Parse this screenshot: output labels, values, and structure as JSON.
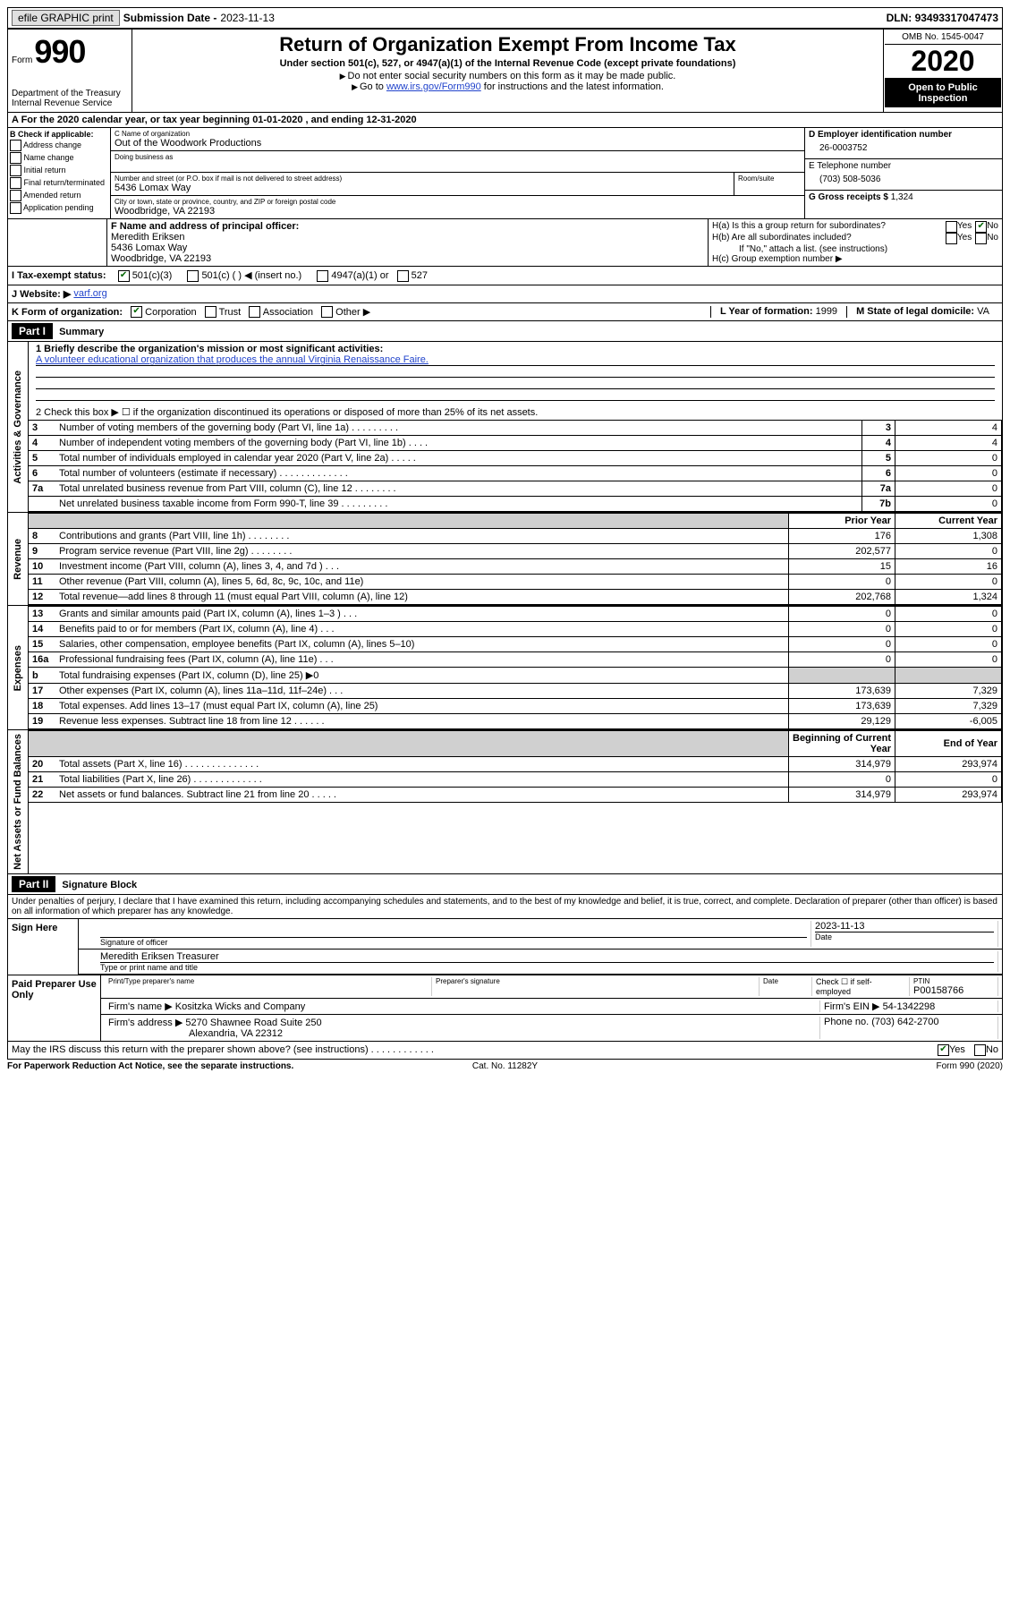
{
  "top": {
    "efile_btn": "efile GRAPHIC print",
    "submission_label": "Submission Date - ",
    "submission_date": "2023-11-13",
    "dln_label": "DLN: ",
    "dln": "93493317047473"
  },
  "header": {
    "form_label": "Form",
    "form_number": "990",
    "dept": "Department of the Treasury\nInternal Revenue Service",
    "title": "Return of Organization Exempt From Income Tax",
    "subtitle": "Under section 501(c), 527, or 4947(a)(1) of the Internal Revenue Code (except private foundations)",
    "instruct1": "Do not enter social security numbers on this form as it may be made public.",
    "instruct2": "Go to ",
    "instruct2_link": "www.irs.gov/Form990",
    "instruct2_suffix": " for instructions and the latest information.",
    "omb": "OMB No. 1545-0047",
    "year": "2020",
    "open_public": "Open to Public Inspection"
  },
  "row_a": "A   For the 2020 calendar year, or tax year beginning 01-01-2020   , and ending 12-31-2020",
  "section_b": {
    "header": "B Check if applicable:",
    "items": [
      "Address change",
      "Name change",
      "Initial return",
      "Final return/terminated",
      "Amended return",
      "Application pending"
    ]
  },
  "section_c": {
    "name_label": "C Name of organization",
    "name": "Out of the Woodwork Productions",
    "dba_label": "Doing business as",
    "address_label": "Number and street (or P.O. box if mail is not delivered to street address)",
    "room_label": "Room/suite",
    "address": "5436 Lomax Way",
    "city_label": "City or town, state or province, country, and ZIP or foreign postal code",
    "city": "Woodbridge, VA  22193"
  },
  "section_de": {
    "d_label": "D Employer identification number",
    "ein": "26-0003752",
    "e_label": "E Telephone number",
    "phone": "(703) 508-5036",
    "g_label": "G Gross receipts $ ",
    "g_value": "1,324"
  },
  "section_f": {
    "label": "F Name and address of principal officer:",
    "name": "Meredith Eriksen",
    "addr1": "5436 Lomax Way",
    "addr2": "Woodbridge, VA  22193"
  },
  "section_h": {
    "ha": "H(a)  Is this a group return for subordinates?",
    "hb": "H(b)  Are all subordinates included?",
    "hb_note": "If \"No,\" attach a list. (see instructions)",
    "hc": "H(c)  Group exemption number ▶"
  },
  "section_i": {
    "label": "I   Tax-exempt status:",
    "opt1": "501(c)(3)",
    "opt2": "501(c) (  ) ◀ (insert no.)",
    "opt3": "4947(a)(1) or",
    "opt4": "527"
  },
  "section_j": {
    "label": "J   Website: ▶",
    "value": "varf.org"
  },
  "section_k": {
    "label": "K Form of organization:",
    "o1": "Corporation",
    "o2": "Trust",
    "o3": "Association",
    "o4": "Other ▶"
  },
  "section_l": {
    "label": "L Year of formation: ",
    "value": "1999"
  },
  "section_m": {
    "label": "M State of legal domicile: ",
    "value": "VA"
  },
  "part1_header": {
    "part": "Part I",
    "title": "Summary"
  },
  "summary": {
    "q1_label": "1  Briefly describe the organization's mission or most significant activities:",
    "q1_value": "A volunteer educational organization that produces the annual Virginia Renaissance Faire.",
    "q2": "2   Check this box ▶ ☐  if the organization discontinued its operations or disposed of more than 25% of its net assets.",
    "rows_simple": [
      {
        "n": "3",
        "txt": "Number of voting members of the governing body (Part VI, line 1a)  .   .   .   .   .   .   .   .   .",
        "box": "3",
        "val": "4"
      },
      {
        "n": "4",
        "txt": "Number of independent voting members of the governing body (Part VI, line 1b)   .   .   .   .",
        "box": "4",
        "val": "4"
      },
      {
        "n": "5",
        "txt": "Total number of individuals employed in calendar year 2020 (Part V, line 2a)   .   .   .   .   .",
        "box": "5",
        "val": "0"
      },
      {
        "n": "6",
        "txt": "Total number of volunteers (estimate if necessary)   .   .   .   .   .   .   .   .   .   .   .   .   .",
        "box": "6",
        "val": "0"
      },
      {
        "n": "7a",
        "txt": "Total unrelated business revenue from Part VIII, column (C), line 12   .   .   .   .   .   .   .   .",
        "box": "7a",
        "val": "0"
      },
      {
        "n": "",
        "txt": "Net unrelated business taxable income from Form 990-T, line 39   .   .   .   .   .   .   .   .   .",
        "box": "7b",
        "val": "0"
      }
    ]
  },
  "revenue": {
    "header_prior": "Prior Year",
    "header_current": "Current Year",
    "rows": [
      {
        "n": "8",
        "txt": "Contributions and grants (Part VIII, line 1h)   .   .   .   .   .   .   .   .",
        "prior": "176",
        "curr": "1,308"
      },
      {
        "n": "9",
        "txt": "Program service revenue (Part VIII, line 2g)   .   .   .   .   .   .   .   .",
        "prior": "202,577",
        "curr": "0"
      },
      {
        "n": "10",
        "txt": "Investment income (Part VIII, column (A), lines 3, 4, and 7d )   .   .   .",
        "prior": "15",
        "curr": "16"
      },
      {
        "n": "11",
        "txt": "Other revenue (Part VIII, column (A), lines 5, 6d, 8c, 9c, 10c, and 11e)",
        "prior": "0",
        "curr": "0"
      },
      {
        "n": "12",
        "txt": "Total revenue—add lines 8 through 11 (must equal Part VIII, column (A), line 12)",
        "prior": "202,768",
        "curr": "1,324"
      }
    ]
  },
  "expenses": {
    "rows": [
      {
        "n": "13",
        "txt": "Grants and similar amounts paid (Part IX, column (A), lines 1–3 )   .   .   .",
        "prior": "0",
        "curr": "0"
      },
      {
        "n": "14",
        "txt": "Benefits paid to or for members (Part IX, column (A), line 4)   .   .   .",
        "prior": "0",
        "curr": "0"
      },
      {
        "n": "15",
        "txt": "Salaries, other compensation, employee benefits (Part IX, column (A), lines 5–10)",
        "prior": "0",
        "curr": "0"
      },
      {
        "n": "16a",
        "txt": "Professional fundraising fees (Part IX, column (A), line 11e)   .   .   .",
        "prior": "0",
        "curr": "0"
      },
      {
        "n": "b",
        "txt": "Total fundraising expenses (Part IX, column (D), line 25) ▶0",
        "prior": "",
        "curr": "",
        "grey": true
      },
      {
        "n": "17",
        "txt": "Other expenses (Part IX, column (A), lines 11a–11d, 11f–24e)   .   .   .",
        "prior": "173,639",
        "curr": "7,329"
      },
      {
        "n": "18",
        "txt": "Total expenses. Add lines 13–17 (must equal Part IX, column (A), line 25)",
        "prior": "173,639",
        "curr": "7,329"
      },
      {
        "n": "19",
        "txt": "Revenue less expenses. Subtract line 18 from line 12   .   .   .   .   .   .",
        "prior": "29,129",
        "curr": "-6,005"
      }
    ]
  },
  "netassets": {
    "header_begin": "Beginning of Current Year",
    "header_end": "End of Year",
    "rows": [
      {
        "n": "20",
        "txt": "Total assets (Part X, line 16)   .   .   .   .   .   .   .   .   .   .   .   .   .   .",
        "prior": "314,979",
        "curr": "293,974"
      },
      {
        "n": "21",
        "txt": "Total liabilities (Part X, line 26)   .   .   .   .   .   .   .   .   .   .   .   .   .",
        "prior": "0",
        "curr": "0"
      },
      {
        "n": "22",
        "txt": "Net assets or fund balances. Subtract line 21 from line 20   .   .   .   .   .",
        "prior": "314,979",
        "curr": "293,974"
      }
    ]
  },
  "part2_header": {
    "part": "Part II",
    "title": "Signature Block"
  },
  "part2_text": "Under penalties of perjury, I declare that I have examined this return, including accompanying schedules and statements, and to the best of my knowledge and belief, it is true, correct, and complete. Declaration of preparer (other than officer) is based on all information of which preparer has any knowledge.",
  "sign_here": {
    "label": "Sign Here",
    "sig_of_officer": "Signature of officer",
    "date_label": "Date",
    "date": "2023-11-13",
    "name_title": "Meredith Eriksen  Treasurer",
    "type_print": "Type or print name and title"
  },
  "paid_preparer": {
    "label": "Paid Preparer Use Only",
    "print_name": "Print/Type preparer's name",
    "prep_sig": "Preparer's signature",
    "date": "Date",
    "check_self": "Check ☐ if self-employed",
    "ptin_label": "PTIN",
    "ptin": "P00158766",
    "firm_name_label": "Firm's name   ▶",
    "firm_name": "Kositzka Wicks and Company",
    "firm_ein_label": "Firm's EIN ▶",
    "firm_ein": "54-1342298",
    "firm_addr_label": "Firm's address ▶",
    "firm_addr1": "5270 Shawnee Road Suite 250",
    "firm_addr2": "Alexandria, VA  22312",
    "phone_label": "Phone no. ",
    "phone": "(703) 642-2700"
  },
  "discuss": "May the IRS discuss this return with the preparer shown above? (see instructions)   .   .   .   .   .   .   .   .   .   .   .   .",
  "footer": {
    "left": "For Paperwork Reduction Act Notice, see the separate instructions.",
    "mid": "Cat. No. 11282Y",
    "right": "Form 990 (2020)"
  },
  "labels": {
    "activities": "Activities & Governance",
    "revenue": "Revenue",
    "expenses": "Expenses",
    "netassets": "Net Assets or Fund Balances",
    "yes": "Yes",
    "no": "No"
  }
}
